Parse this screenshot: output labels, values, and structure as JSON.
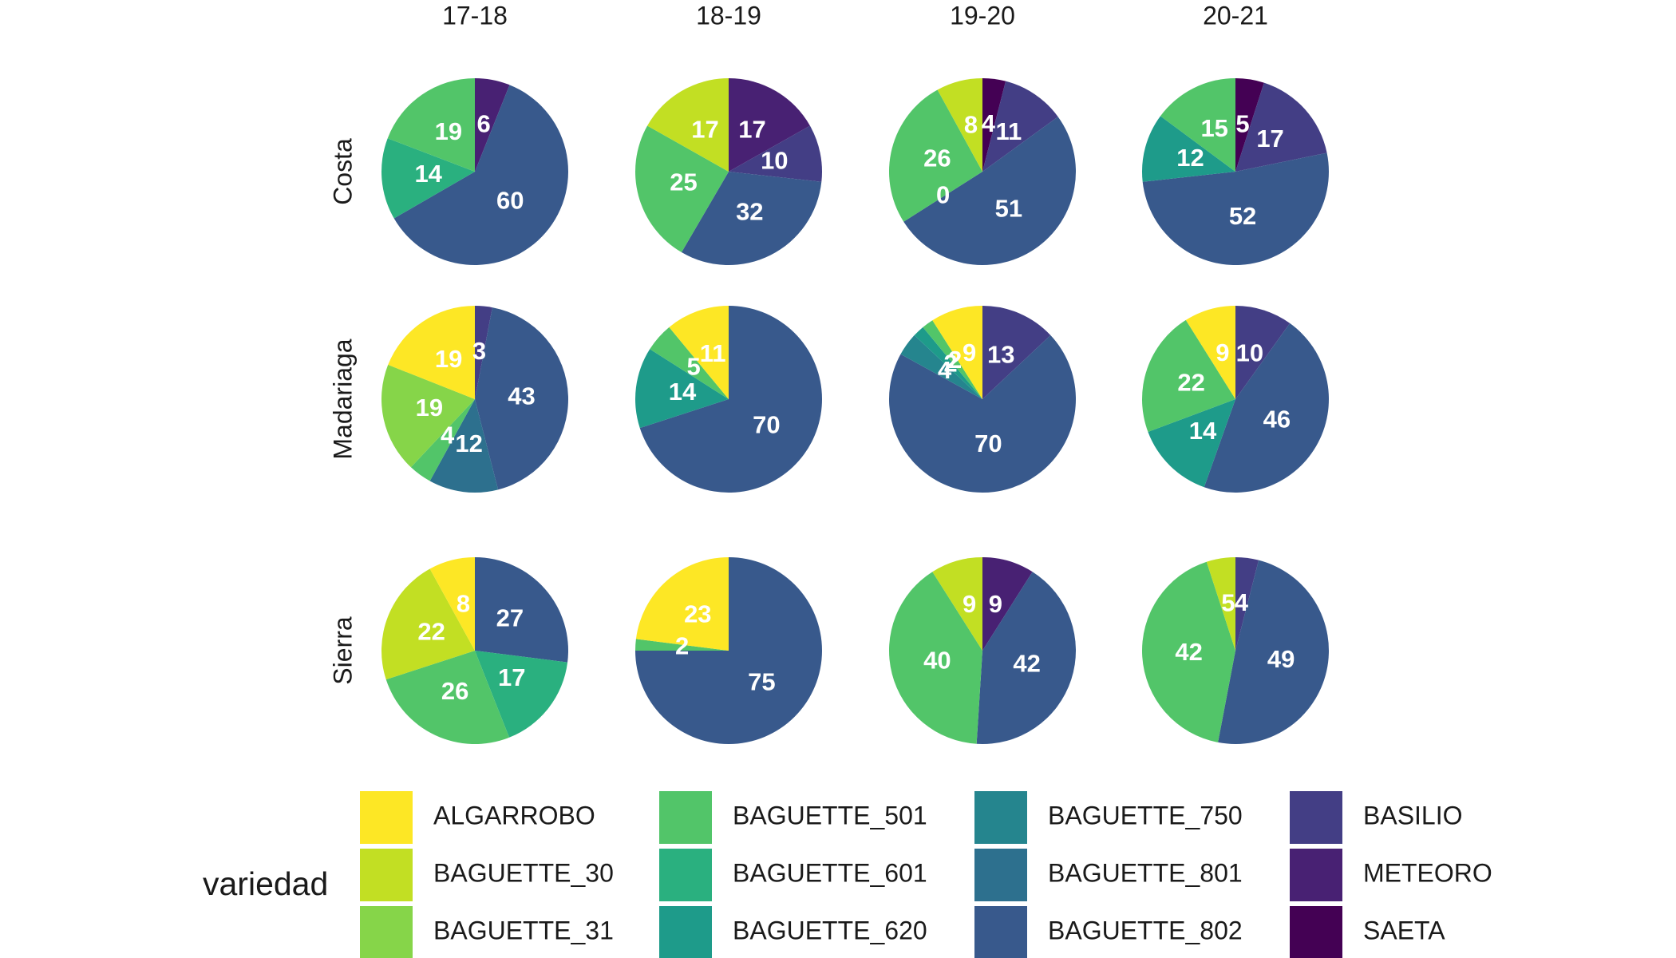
{
  "chart_data": {
    "type": "pie",
    "facet_columns": [
      "17-18",
      "18-19",
      "19-20",
      "20-21"
    ],
    "facet_rows": [
      "Costa",
      "Madariaga",
      "Sierra"
    ],
    "slice_order": [
      "SAETA",
      "METEORO",
      "BASILIO",
      "BAGUETTE_802",
      "BAGUETTE_801",
      "BAGUETTE_750",
      "BAGUETTE_620",
      "BAGUETTE_601",
      "BAGUETTE_501",
      "BAGUETTE_31",
      "BAGUETTE_30",
      "ALGARROBO"
    ],
    "legend": {
      "title": "variedad",
      "items": [
        {
          "label": "ALGARROBO",
          "color": "#FDE725"
        },
        {
          "label": "BAGUETTE_30",
          "color": "#C2DF23"
        },
        {
          "label": "BAGUETTE_31",
          "color": "#86D549"
        },
        {
          "label": "BAGUETTE_501",
          "color": "#52C569"
        },
        {
          "label": "BAGUETTE_601",
          "color": "#2AB07F"
        },
        {
          "label": "BAGUETTE_620",
          "color": "#1E9B8A"
        },
        {
          "label": "BAGUETTE_750",
          "color": "#25858E"
        },
        {
          "label": "BAGUETTE_801",
          "color": "#2D708E"
        },
        {
          "label": "BAGUETTE_802",
          "color": "#38598C"
        },
        {
          "label": "BASILIO",
          "color": "#433E85"
        },
        {
          "label": "METEORO",
          "color": "#482173"
        },
        {
          "label": "SAETA",
          "color": "#440154"
        }
      ]
    },
    "panels": [
      {
        "row": "Costa",
        "col": "17-18",
        "slices": [
          {
            "variety": "METEORO",
            "value": 6
          },
          {
            "variety": "BAGUETTE_802",
            "value": 60
          },
          {
            "variety": "BAGUETTE_601",
            "value": 14
          },
          {
            "variety": "BAGUETTE_501",
            "value": 19
          }
        ]
      },
      {
        "row": "Costa",
        "col": "18-19",
        "slices": [
          {
            "variety": "METEORO",
            "value": 17
          },
          {
            "variety": "BASILIO",
            "value": 10
          },
          {
            "variety": "BAGUETTE_802",
            "value": 32
          },
          {
            "variety": "BAGUETTE_501",
            "value": 25
          },
          {
            "variety": "BAGUETTE_30",
            "value": 17
          }
        ]
      },
      {
        "row": "Costa",
        "col": "19-20",
        "slices": [
          {
            "variety": "SAETA",
            "value": 4
          },
          {
            "variety": "BASILIO",
            "value": 11
          },
          {
            "variety": "BAGUETTE_802",
            "value": 51
          },
          {
            "variety": "BAGUETTE_601",
            "value": 0
          },
          {
            "variety": "BAGUETTE_501",
            "value": 26
          },
          {
            "variety": "BAGUETTE_30",
            "value": 8
          }
        ]
      },
      {
        "row": "Costa",
        "col": "20-21",
        "slices": [
          {
            "variety": "SAETA",
            "value": 5
          },
          {
            "variety": "BASILIO",
            "value": 17
          },
          {
            "variety": "BAGUETTE_802",
            "value": 52
          },
          {
            "variety": "BAGUETTE_620",
            "value": 12
          },
          {
            "variety": "BAGUETTE_501",
            "value": 15
          }
        ]
      },
      {
        "row": "Madariaga",
        "col": "17-18",
        "slices": [
          {
            "variety": "BASILIO",
            "value": 3
          },
          {
            "variety": "BAGUETTE_802",
            "value": 43
          },
          {
            "variety": "BAGUETTE_801",
            "value": 12
          },
          {
            "variety": "BAGUETTE_501",
            "value": 4
          },
          {
            "variety": "BAGUETTE_31",
            "value": 19
          },
          {
            "variety": "ALGARROBO",
            "value": 19
          }
        ]
      },
      {
        "row": "Madariaga",
        "col": "18-19",
        "slices": [
          {
            "variety": "BAGUETTE_802",
            "value": 70
          },
          {
            "variety": "BAGUETTE_620",
            "value": 14
          },
          {
            "variety": "BAGUETTE_501",
            "value": 5
          },
          {
            "variety": "ALGARROBO",
            "value": 11
          }
        ]
      },
      {
        "row": "Madariaga",
        "col": "19-20",
        "slices": [
          {
            "variety": "BASILIO",
            "value": 13
          },
          {
            "variety": "BAGUETTE_802",
            "value": 70
          },
          {
            "variety": "BAGUETTE_750",
            "value": 4
          },
          {
            "variety": "BAGUETTE_620",
            "value": 2
          },
          {
            "variety": "BAGUETTE_501",
            "value": 2
          },
          {
            "variety": "ALGARROBO",
            "value": 9
          }
        ]
      },
      {
        "row": "Madariaga",
        "col": "20-21",
        "slices": [
          {
            "variety": "BASILIO",
            "value": 10
          },
          {
            "variety": "BAGUETTE_802",
            "value": 46
          },
          {
            "variety": "BAGUETTE_620",
            "value": 14
          },
          {
            "variety": "BAGUETTE_501",
            "value": 22
          },
          {
            "variety": "ALGARROBO",
            "value": 9
          }
        ]
      },
      {
        "row": "Sierra",
        "col": "17-18",
        "slices": [
          {
            "variety": "BAGUETTE_802",
            "value": 27
          },
          {
            "variety": "BAGUETTE_601",
            "value": 17
          },
          {
            "variety": "BAGUETTE_501",
            "value": 26
          },
          {
            "variety": "BAGUETTE_30",
            "value": 22
          },
          {
            "variety": "ALGARROBO",
            "value": 8
          }
        ]
      },
      {
        "row": "Sierra",
        "col": "18-19",
        "slices": [
          {
            "variety": "BAGUETTE_802",
            "value": 75
          },
          {
            "variety": "BAGUETTE_501",
            "value": 2
          },
          {
            "variety": "ALGARROBO",
            "value": 23
          }
        ]
      },
      {
        "row": "Sierra",
        "col": "19-20",
        "slices": [
          {
            "variety": "METEORO",
            "value": 9
          },
          {
            "variety": "BAGUETTE_802",
            "value": 42
          },
          {
            "variety": "BAGUETTE_501",
            "value": 40
          },
          {
            "variety": "BAGUETTE_30",
            "value": 9
          }
        ]
      },
      {
        "row": "Sierra",
        "col": "20-21",
        "slices": [
          {
            "variety": "BASILIO",
            "value": 4
          },
          {
            "variety": "BAGUETTE_802",
            "value": 49
          },
          {
            "variety": "BAGUETTE_501",
            "value": 42
          },
          {
            "variety": "BAGUETTE_30",
            "value": 5
          }
        ]
      }
    ]
  }
}
